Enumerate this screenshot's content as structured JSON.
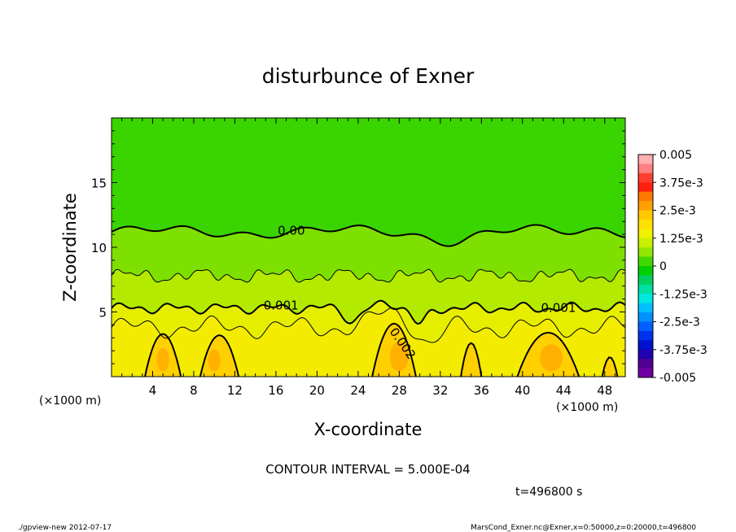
{
  "chart_data": {
    "type": "contour",
    "title": "disturbunce of Exner",
    "xlabel": "X-coordinate",
    "ylabel": "Z-coordinate",
    "x_unit": "(×1000 m)",
    "xlim": [
      0,
      50
    ],
    "ylim": [
      0,
      20
    ],
    "x_ticks": [
      4,
      8,
      12,
      16,
      20,
      24,
      28,
      32,
      36,
      40,
      44,
      48
    ],
    "y_ticks": [
      5,
      10,
      15
    ],
    "contour_interval_text": "CONTOUR INTERVAL = 5.000E-04",
    "time_text": "t=496800 s",
    "contour_labels": [
      {
        "text": "0.00",
        "x": 17.5,
        "z": 11.3
      },
      {
        "text": "0.001",
        "x": 16.5,
        "z": 5.5
      },
      {
        "text": "0.001",
        "x": 43.5,
        "z": 5.3
      },
      {
        "text": "0.002",
        "x": 28.0,
        "z": 2.7
      }
    ],
    "colorbar": {
      "labels": [
        "0.005",
        "3.75e-3",
        "2.5e-3",
        "1.25e-3",
        "0",
        "-1.25e-3",
        "-2.5e-3",
        "-3.75e-3",
        "-0.005"
      ],
      "colors": [
        "#ffb0b0",
        "#ff8080",
        "#ff4030",
        "#ff2010",
        "#ff7a00",
        "#ffa000",
        "#ffc800",
        "#ffe000",
        "#f0f000",
        "#c8f000",
        "#90e800",
        "#40d800",
        "#00d000",
        "#00d060",
        "#00e0a0",
        "#00e8e0",
        "#00c0ff",
        "#0090ff",
        "#0060ff",
        "#0030f0",
        "#0010d0",
        "#2000b0",
        "#500090",
        "#7000a0"
      ]
    },
    "regions": {
      "upper": "#3ad400",
      "mid": "#7ee000",
      "low1": "#b4ea00",
      "low2": "#e6ee00",
      "high": "#ffd000",
      "peak": "#ffb000"
    }
  },
  "footer": {
    "left": "./gpview-new   2012-07-17",
    "right": "MarsCond_Exner.nc@Exner,x=0:50000,z=0:20000,t=496800"
  }
}
